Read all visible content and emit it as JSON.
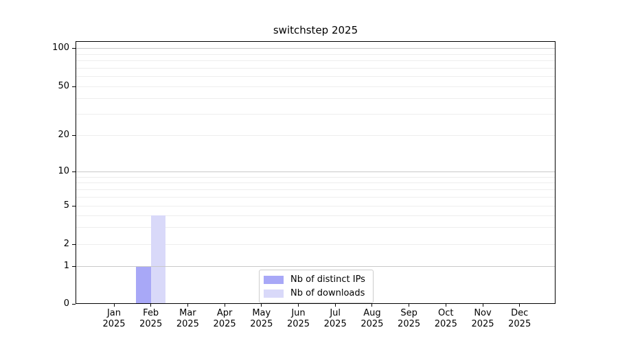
{
  "page": {
    "background": "#ffffff"
  },
  "chart_data": {
    "type": "bar",
    "title": "switchstep 2025",
    "x": {
      "months": [
        "Jan",
        "Feb",
        "Mar",
        "Apr",
        "May",
        "Jun",
        "Jul",
        "Aug",
        "Sep",
        "Oct",
        "Nov",
        "Dec"
      ],
      "year": "2025"
    },
    "categories": [
      "Jan 2025",
      "Feb 2025",
      "Mar 2025",
      "Apr 2025",
      "May 2025",
      "Jun 2025",
      "Jul 2025",
      "Aug 2025",
      "Sep 2025",
      "Oct 2025",
      "Nov 2025",
      "Dec 2025"
    ],
    "series": [
      {
        "name": "Nb of distinct IPs",
        "color": "#a8a8f7",
        "values": [
          0,
          1,
          0,
          0,
          0,
          0,
          0,
          0,
          0,
          0,
          0,
          0
        ]
      },
      {
        "name": "Nb of downloads",
        "color": "#d9d9f9",
        "values": [
          0,
          4,
          0,
          0,
          0,
          0,
          0,
          0,
          0,
          0,
          0,
          0
        ]
      }
    ],
    "yscale": "log above 1, linear 0-1",
    "yticks": [
      0,
      1,
      2,
      5,
      10,
      20,
      50,
      100
    ],
    "ylim": [
      0,
      105
    ],
    "grid": {
      "major_values": [
        1,
        10,
        100
      ],
      "minor_values": [
        2,
        3,
        4,
        5,
        6,
        7,
        8,
        9,
        20,
        30,
        40,
        50,
        60,
        70,
        80,
        90
      ]
    },
    "legend": {
      "position": "bottom-center",
      "entries": [
        "Nb of distinct IPs",
        "Nb of downloads"
      ]
    }
  },
  "colors": {
    "grid_major": "#c8c8c8",
    "grid_minor": "#ededed",
    "axis": "#000000",
    "text": "#000000",
    "legend_border": "#cccccc",
    "background": "#ffffff"
  }
}
